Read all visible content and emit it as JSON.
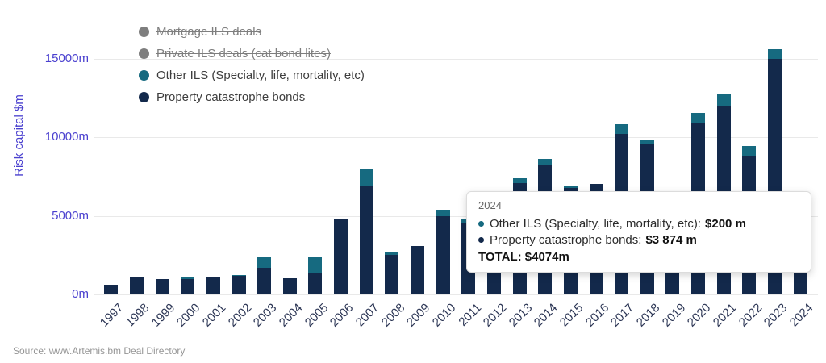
{
  "y_axis": {
    "title": "Risk capital $m",
    "ticks": [
      "0m",
      "5000m",
      "10000m",
      "15000m"
    ]
  },
  "legend": {
    "items": [
      {
        "label": "Mortgage ILS deals",
        "color": "#7e7e7e",
        "disabled": true
      },
      {
        "label": "Private ILS deals (cat bond lites)",
        "color": "#7e7e7e",
        "disabled": true
      },
      {
        "label": "Other ILS (Specialty, life, mortality, etc)",
        "color": "#166a80",
        "disabled": false
      },
      {
        "label": "Property catastrophe bonds",
        "color": "#13294b",
        "disabled": false
      }
    ]
  },
  "tooltip": {
    "year": "2024",
    "rows": [
      {
        "label": "Other ILS (Specialty, life, mortality, etc):",
        "value": "$200 m",
        "color": "#166a80"
      },
      {
        "label": "Property catastrophe bonds:",
        "value": "$3 874 m",
        "color": "#13294b"
      }
    ],
    "total_label": "TOTAL:",
    "total_value": "$4074m"
  },
  "source": "Source: www.Artemis.bm Deal Directory",
  "chart_data": {
    "type": "bar",
    "stacked": true,
    "title": "",
    "xlabel": "",
    "ylabel": "Risk capital $m",
    "ylim": [
      0,
      16000
    ],
    "yticks": [
      0,
      5000,
      10000,
      15000
    ],
    "categories": [
      1997,
      1998,
      1999,
      2000,
      2001,
      2002,
      2003,
      2004,
      2005,
      2006,
      2007,
      2008,
      2009,
      2010,
      2011,
      2012,
      2013,
      2014,
      2015,
      2016,
      2017,
      2018,
      2019,
      2020,
      2021,
      2022,
      2023,
      2024
    ],
    "series": [
      {
        "name": "Property catastrophe bonds",
        "color": "#13294b",
        "values": [
          633,
          1139,
          984,
          950,
          1143,
          1160,
          1690,
          1040,
          1390,
          4790,
          6850,
          2530,
          3090,
          4980,
          4490,
          6250,
          7100,
          8180,
          6750,
          7050,
          10200,
          9580,
          5100,
          10910,
          11950,
          8800,
          14980,
          3874
        ]
      },
      {
        "name": "Other ILS (Specialty, life, mortality, etc)",
        "color": "#166a80",
        "values": [
          0,
          0,
          0,
          120,
          0,
          60,
          680,
          0,
          1030,
          0,
          1130,
          200,
          0,
          380,
          300,
          0,
          260,
          420,
          150,
          0,
          620,
          260,
          0,
          620,
          770,
          620,
          620,
          200
        ]
      }
    ],
    "legend_position": "top-left",
    "grid": true
  }
}
